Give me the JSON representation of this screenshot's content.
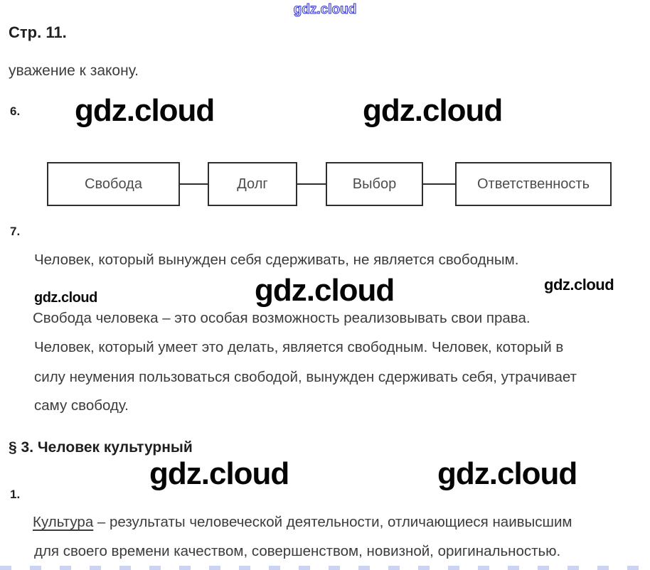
{
  "watermark": "gdz.cloud",
  "header": {
    "page_label": "Стр. 11.",
    "intro": "уважение к закону."
  },
  "task6": {
    "number": "6.",
    "flowchart": {
      "boxes": [
        "Свобода",
        "Долг",
        "Выбор",
        "Ответственность"
      ]
    }
  },
  "task7": {
    "number": "7.",
    "lines": [
      "Человек, который вынужден себя сдерживать, не является свободным.",
      "Свобода человека – это особая возможность реализовывать свои права.",
      "Человек, который умеет это делать, является свободным. Человек, который в",
      "силу неумения пользоваться свободой, вынужден сдерживать себя, утрачивает",
      "саму свободу."
    ]
  },
  "section3": {
    "title": "§ 3. Человек культурный"
  },
  "task1": {
    "number": "1.",
    "term": "Культура",
    "line1_rest": " – результаты человеческой деятельности, отличающиеся наивысшим",
    "line2": "для своего времени качеством, совершенством, новизной, оригинальностью."
  },
  "colors": {
    "watermark_blue": "#3434cc",
    "text_dark": "#3c3c3c",
    "heading": "#1f1f1f",
    "box_border": "#2e2e2e"
  }
}
